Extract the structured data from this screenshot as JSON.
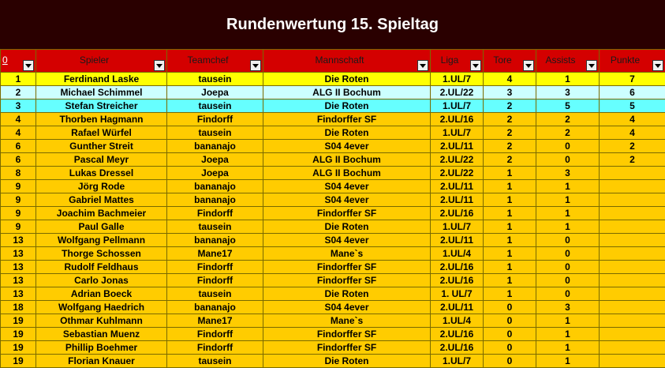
{
  "title": "Rundenwertung 15. Spieltag",
  "columns": [
    "0",
    "Spieler",
    "Teamchef",
    "Mannschaft",
    "Liga",
    "Tore",
    "Assists",
    "Punkte"
  ],
  "colors": {
    "yellow": "#ffff00",
    "cyan": "#ccffff",
    "turquoise": "#66ffff",
    "orange": "#ffcc00",
    "header": "#d40000",
    "background": "#2a0000"
  },
  "icons": {
    "filter": "dropdown-arrow-icon"
  },
  "rows": [
    {
      "rank": "1",
      "player": "Ferdinand Laske",
      "coach": "tausein",
      "team": "Die Roten",
      "league": "1.UL/7",
      "goals": "4",
      "assists": "1",
      "points": "7",
      "style": "yellow"
    },
    {
      "rank": "2",
      "player": "Michael Schimmel",
      "coach": "Joepa",
      "team": "ALG II Bochum",
      "league": "2.UL/22",
      "goals": "3",
      "assists": "3",
      "points": "6",
      "style": "cyan"
    },
    {
      "rank": "3",
      "player": "Stefan Streicher",
      "coach": "tausein",
      "team": "Die Roten",
      "league": "1.UL/7",
      "goals": "2",
      "assists": "5",
      "points": "5",
      "style": "turq"
    },
    {
      "rank": "4",
      "player": "Thorben Hagmann",
      "coach": "Findorff",
      "team": "Findorffer SF",
      "league": "2.UL/16",
      "goals": "2",
      "assists": "2",
      "points": "4",
      "style": "orange"
    },
    {
      "rank": "4",
      "player": "Rafael Würfel",
      "coach": "tausein",
      "team": "Die Roten",
      "league": "1.UL/7",
      "goals": "2",
      "assists": "2",
      "points": "4",
      "style": "orange"
    },
    {
      "rank": "6",
      "player": "Gunther Streit",
      "coach": "bananajo",
      "team": "S04 4ever",
      "league": "2.UL/11",
      "goals": "2",
      "assists": "0",
      "points": "2",
      "style": "orange"
    },
    {
      "rank": "6",
      "player": "Pascal Meyr",
      "coach": "Joepa",
      "team": "ALG II Bochum",
      "league": "2.UL/22",
      "goals": "2",
      "assists": "0",
      "points": "2",
      "style": "orange"
    },
    {
      "rank": "8",
      "player": "Lukas Dressel",
      "coach": "Joepa",
      "team": "ALG II Bochum",
      "league": "2.UL/22",
      "goals": "1",
      "assists": "3",
      "points": "",
      "style": "orange"
    },
    {
      "rank": "9",
      "player": "Jörg Rode",
      "coach": "bananajo",
      "team": "S04 4ever",
      "league": "2.UL/11",
      "goals": "1",
      "assists": "1",
      "points": "",
      "style": "orange"
    },
    {
      "rank": "9",
      "player": "Gabriel Mattes",
      "coach": "bananajo",
      "team": "S04 4ever",
      "league": "2.UL/11",
      "goals": "1",
      "assists": "1",
      "points": "",
      "style": "orange"
    },
    {
      "rank": "9",
      "player": "Joachim Bachmeier",
      "coach": "Findorff",
      "team": "Findorffer SF",
      "league": "2.UL/16",
      "goals": "1",
      "assists": "1",
      "points": "",
      "style": "orange"
    },
    {
      "rank": "9",
      "player": "Paul Galle",
      "coach": "tausein",
      "team": "Die Roten",
      "league": "1.UL/7",
      "goals": "1",
      "assists": "1",
      "points": "",
      "style": "orange"
    },
    {
      "rank": "13",
      "player": "Wolfgang Pellmann",
      "coach": "bananajo",
      "team": "S04 4ever",
      "league": "2.UL/11",
      "goals": "1",
      "assists": "0",
      "points": "",
      "style": "orange"
    },
    {
      "rank": "13",
      "player": "Thorge Schossen",
      "coach": "Mane17",
      "team": "Mane`s",
      "league": "1.UL/4",
      "goals": "1",
      "assists": "0",
      "points": "",
      "style": "orange"
    },
    {
      "rank": "13",
      "player": "Rudolf Feldhaus",
      "coach": "Findorff",
      "team": "Findorffer SF",
      "league": "2.UL/16",
      "goals": "1",
      "assists": "0",
      "points": "",
      "style": "orange"
    },
    {
      "rank": "13",
      "player": "Carlo Jonas",
      "coach": "Findorff",
      "team": "Findorffer SF",
      "league": "2.UL/16",
      "goals": "1",
      "assists": "0",
      "points": "",
      "style": "orange"
    },
    {
      "rank": "13",
      "player": "Adrian Boeck",
      "coach": "tausein",
      "team": "Die Roten",
      "league": "1. UL/7",
      "goals": "1",
      "assists": "0",
      "points": "",
      "style": "orange"
    },
    {
      "rank": "18",
      "player": "Wolfgang Haedrich",
      "coach": "bananajo",
      "team": "S04 4ever",
      "league": "2.UL/11",
      "goals": "0",
      "assists": "3",
      "points": "",
      "style": "orange"
    },
    {
      "rank": "19",
      "player": "Othmar Kuhlmann",
      "coach": "Mane17",
      "team": "Mane`s",
      "league": "1.UL/4",
      "goals": "0",
      "assists": "1",
      "points": "",
      "style": "orange"
    },
    {
      "rank": "19",
      "player": "Sebastian Muenz",
      "coach": "Findorff",
      "team": "Findorffer SF",
      "league": "2.UL/16",
      "goals": "0",
      "assists": "1",
      "points": "",
      "style": "orange"
    },
    {
      "rank": "19",
      "player": "Phillip Boehmer",
      "coach": "Findorff",
      "team": "Findorffer SF",
      "league": "2.UL/16",
      "goals": "0",
      "assists": "1",
      "points": "",
      "style": "orange"
    },
    {
      "rank": "19",
      "player": "Florian Knauer",
      "coach": "tausein",
      "team": "Die Roten",
      "league": "1.UL/7",
      "goals": "0",
      "assists": "1",
      "points": "",
      "style": "orange"
    }
  ]
}
